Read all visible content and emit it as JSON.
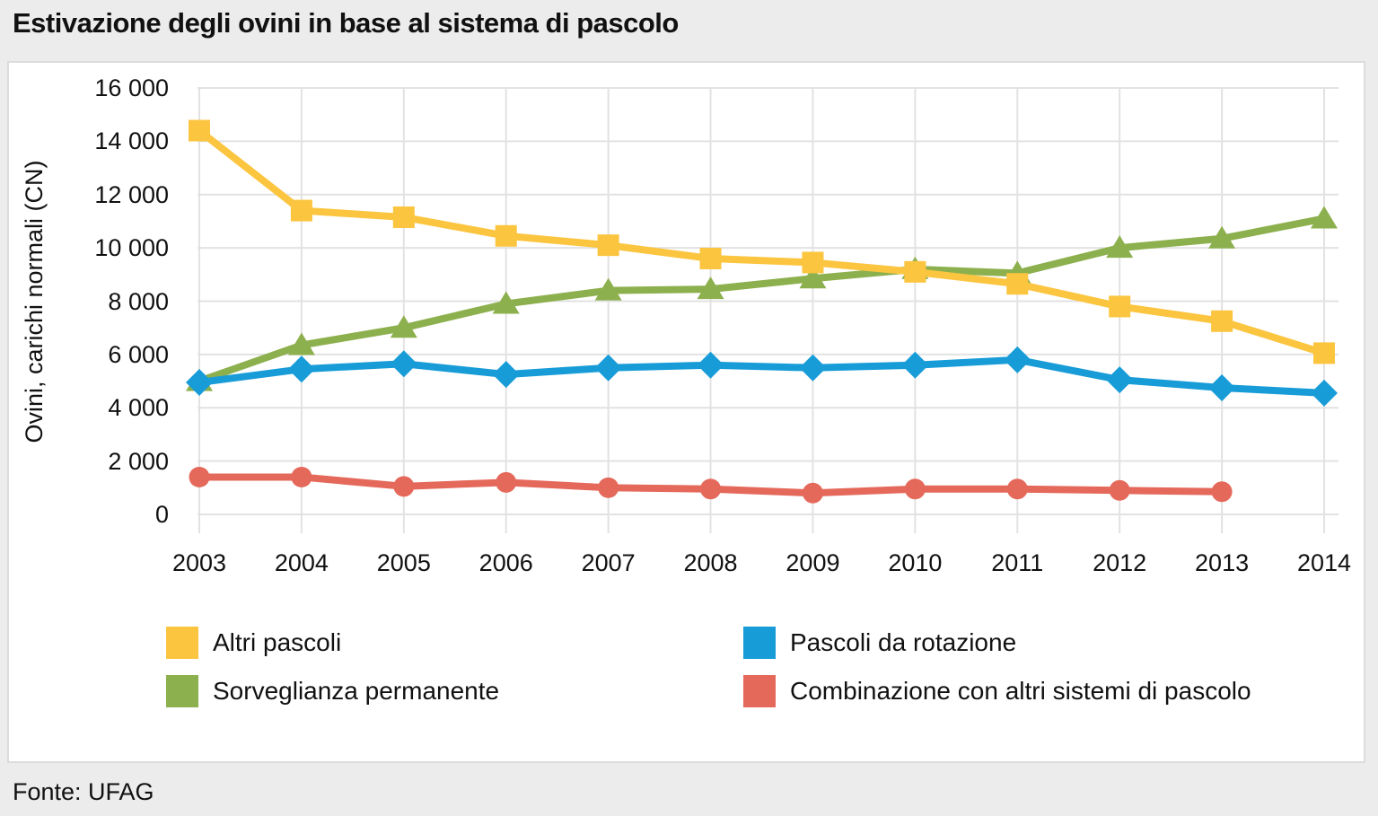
{
  "page": {
    "title": "Estivazione degli ovini in base al sistema di pascolo",
    "source": "Fonte: UFAG"
  },
  "chart_data": {
    "type": "line",
    "title": "Estivazione degli ovini in base al sistema di pascolo",
    "xlabel": "",
    "ylabel": "Ovini, carichi normali (CN)",
    "ylim": [
      0,
      16000
    ],
    "grid": true,
    "legend_position": "bottom-two-columns",
    "x": [
      2003,
      2004,
      2005,
      2006,
      2007,
      2008,
      2009,
      2010,
      2011,
      2012,
      2013,
      2014
    ],
    "x_tick_labels": [
      "2003",
      "2004",
      "2005",
      "2006",
      "2007",
      "2008",
      "2009",
      "2010",
      "2011",
      "2012",
      "2013",
      "2014"
    ],
    "y_ticks": [
      {
        "value": 16000,
        "label": "16 000"
      },
      {
        "value": 14000,
        "label": "14 000"
      },
      {
        "value": 12000,
        "label": "12 000"
      },
      {
        "value": 10000,
        "label": "10 000"
      },
      {
        "value": 8000,
        "label": "8 000"
      },
      {
        "value": 6000,
        "label": "6 000"
      },
      {
        "value": 4000,
        "label": "4 000"
      },
      {
        "value": 2000,
        "label": "2 000"
      },
      {
        "value": 0,
        "label": "0"
      }
    ],
    "series": [
      {
        "id": "altri",
        "name": "Altri pascoli",
        "color": "#FBC540",
        "marker": "square",
        "values": [
          14400,
          11400,
          11150,
          10450,
          10100,
          9600,
          9450,
          9100,
          8650,
          7800,
          7250,
          6050
        ]
      },
      {
        "id": "sorveglianza",
        "name": "Sorveglianza permanente",
        "color": "#8DB04E",
        "marker": "triangle",
        "values": [
          5000,
          6350,
          7000,
          7900,
          8400,
          8450,
          8850,
          9200,
          9050,
          10000,
          10350,
          11100
        ]
      },
      {
        "id": "rotazione",
        "name": "Pascoli da rotazione",
        "color": "#189CD8",
        "marker": "diamond",
        "values": [
          4950,
          5450,
          5650,
          5250,
          5500,
          5600,
          5500,
          5600,
          5800,
          5050,
          4750,
          4550
        ]
      },
      {
        "id": "combinazione",
        "name": "Combinazione con altri sistemi di pascolo",
        "color": "#E5695B",
        "marker": "circle",
        "values": [
          1400,
          1400,
          1050,
          1200,
          1000,
          950,
          800,
          950,
          950,
          900,
          850,
          null
        ]
      }
    ]
  },
  "style": {
    "grid_color": "#e2e2e2",
    "panel_background": "#ffffff",
    "page_background": "#ececec"
  }
}
